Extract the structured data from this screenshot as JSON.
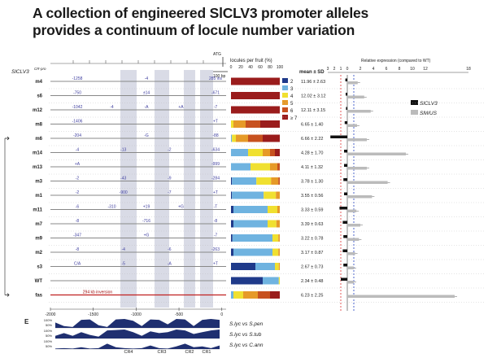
{
  "title": {
    "line1_a": "A collection of engineered ",
    "line1_b": "SlCLV3",
    "line1_c": " promoter alleles",
    "line2": "provides a continuum of locule number variation"
  },
  "panel_letter": "E",
  "headers": {
    "allele_col": "SlCLV3",
    "allele_sup": "CR-pro",
    "atg": "ATG",
    "scale_bar": "100 bp",
    "locules": "locules per fruit (%)",
    "locules_ticks": [
      "0",
      "20",
      "40",
      "60",
      "80",
      "100"
    ],
    "mean_sd": "mean ± SD",
    "rel_expr": "Relative expression (compared to WT)",
    "rel_ticks_left": [
      "3",
      "2",
      "1",
      "0"
    ],
    "rel_ticks_right": [
      "2",
      "4",
      "6",
      "8",
      "10",
      "12"
    ],
    "rel_break_tick": "18"
  },
  "axis_ticks": [
    "-2000",
    "-1500",
    "-1000",
    "-500",
    "0"
  ],
  "legend_locules": [
    {
      "label": "2",
      "color": "#1f3a8a"
    },
    {
      "label": "3",
      "color": "#6fb3e0"
    },
    {
      "label": "4",
      "color": "#f0e030"
    },
    {
      "label": "5",
      "color": "#e69a28"
    },
    {
      "label": "6",
      "color": "#c7511f"
    },
    {
      "label": "≥ 7",
      "color": "#9a1c1c"
    }
  ],
  "legend_expr": [
    {
      "label": "SlCLV3",
      "color": "#111111"
    },
    {
      "label": "SlWUS",
      "color": "#bbbbbb"
    }
  ],
  "conservation": [
    {
      "label": "S.lyc vs S.pen",
      "pct": [
        "100%",
        "50%"
      ]
    },
    {
      "label": "S.lyc vs S.tub",
      "pct": [
        "100%",
        "50%"
      ]
    },
    {
      "label": "S.lyc vs C.ann",
      "pct": [
        "100%",
        "50%"
      ]
    }
  ],
  "regions": [
    "CR4",
    "CR3",
    "CR2",
    "CR1"
  ],
  "alleles": [
    {
      "name": "m4",
      "mean": "11.96 ± 2.63",
      "dels": [
        "-1258",
        "-4",
        "285 ins"
      ],
      "loc": [
        0,
        0,
        0,
        0,
        0,
        100
      ],
      "clv": 0.3,
      "wus": 1.6
    },
    {
      "name": "s6",
      "mean": "12.02 ± 3.12",
      "dels": [
        "-750",
        "±14",
        "-671"
      ],
      "loc": [
        0,
        0,
        0,
        0,
        0,
        100
      ],
      "clv": 0.25,
      "wus": 2.6
    },
    {
      "name": "m12",
      "mean": "12.11 ± 3.15",
      "dels": [
        "-1042",
        "-4",
        "-A",
        "+A",
        "-7"
      ],
      "loc": [
        0,
        0,
        0,
        0,
        0,
        100
      ],
      "clv": 0.2,
      "wus": 3.6
    },
    {
      "name": "m8",
      "mean": "6.65 ± 1.40",
      "dels": [
        "-1406",
        "+T"
      ],
      "loc": [
        0,
        0,
        5,
        25,
        30,
        40
      ],
      "clv": 0.4,
      "wus": 1.5
    },
    {
      "name": "m6",
      "mean": "6.66 ± 2.22",
      "dels": [
        "-204",
        "-G",
        "-88"
      ],
      "loc": [
        0,
        2,
        8,
        25,
        30,
        35
      ],
      "clv": 2.6,
      "wus": 3.0
    },
    {
      "name": "m14",
      "mean": "4.28 ± 1.70",
      "dels": [
        "-4",
        "-13",
        "-2",
        "-634"
      ],
      "loc": [
        0,
        35,
        30,
        15,
        10,
        10
      ],
      "clv": 0.5,
      "wus": 9.0
    },
    {
      "name": "m13",
      "mean": "4.11 ± 1.32",
      "dels": [
        "+A",
        "-999"
      ],
      "loc": [
        0,
        40,
        40,
        15,
        5,
        0
      ],
      "clv": 0.5,
      "wus": 3.0
    },
    {
      "name": "m3",
      "mean": "3.78 ± 1.30",
      "dels": [
        "-2",
        "-43",
        "-9",
        "-284"
      ],
      "loc": [
        2,
        50,
        30,
        15,
        3,
        0
      ],
      "clv": 0.6,
      "wus": 6.2
    },
    {
      "name": "m1",
      "mean": "3.55 ± 0.56",
      "dels": [
        "-2",
        "-900",
        "-7",
        "+T"
      ],
      "loc": [
        2,
        65,
        25,
        8,
        0,
        0
      ],
      "clv": 0.5,
      "wus": 3.8
    },
    {
      "name": "m11",
      "mean": "3.33 ± 0.59",
      "dels": [
        "-6",
        "-310",
        "+19",
        "+G",
        "-T"
      ],
      "loc": [
        5,
        70,
        20,
        5,
        0,
        0
      ],
      "clv": 1.2,
      "wus": 1.4
    },
    {
      "name": "m7",
      "mean": "3.39 ± 0.63",
      "dels": [
        "-8",
        "-716",
        "-8"
      ],
      "loc": [
        5,
        70,
        18,
        7,
        0,
        0
      ],
      "clv": 0.7,
      "wus": 2.0
    },
    {
      "name": "m9",
      "mean": "3.22 ± 0.78",
      "dels": [
        "-347",
        "+G",
        "-7"
      ],
      "loc": [
        3,
        82,
        12,
        3,
        0,
        0
      ],
      "clv": 0.6,
      "wus": 1.8
    },
    {
      "name": "m2",
      "mean": "3.17 ± 0.87",
      "dels": [
        "-8",
        "-4",
        "-6",
        "-263"
      ],
      "loc": [
        5,
        80,
        12,
        3,
        0,
        0
      ],
      "clv": 0.7,
      "wus": 1.2
    },
    {
      "name": "s3",
      "mean": "2.67 ± 0.73",
      "dels": [
        "C/A",
        "-5",
        "-A",
        "+T"
      ],
      "loc": [
        50,
        40,
        8,
        2,
        0,
        0
      ],
      "clv": 0.6,
      "wus": 1.0
    },
    {
      "name": "WT",
      "mean": "2.34 ± 0.48",
      "dels": [],
      "loc": [
        65,
        33,
        2,
        0,
        0,
        0
      ],
      "clv": 1.0,
      "wus": 1.0
    },
    {
      "name": "fas",
      "mean": "6.23 ± 2.25",
      "dels": [
        "294 kb inversion"
      ],
      "loc": [
        0,
        5,
        20,
        30,
        25,
        20
      ],
      "clv": 0.0,
      "wus": 16.5
    }
  ]
}
